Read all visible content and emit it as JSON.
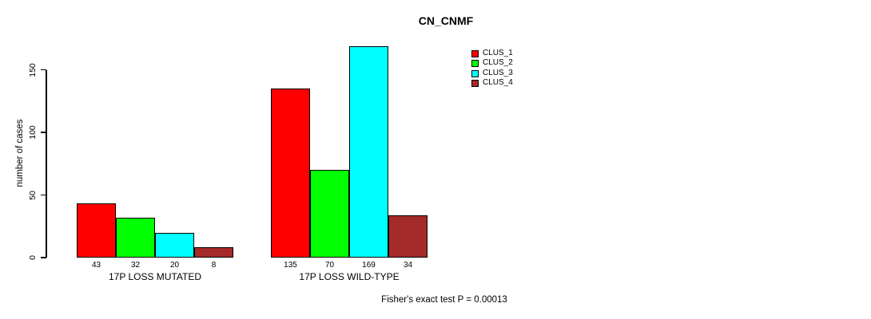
{
  "chart_data": {
    "type": "bar",
    "title": "CN_CNMF",
    "ylabel": "number of cases",
    "xlabel": "",
    "ylim": [
      0,
      169
    ],
    "yticks": [
      0,
      50,
      100,
      150
    ],
    "grid": false,
    "legend_position": "top-right",
    "categories": [
      "17P LOSS MUTATED",
      "17P LOSS WILD-TYPE"
    ],
    "series": [
      {
        "name": "CLUS_1",
        "color": "#ff0000",
        "values": [
          43,
          135
        ]
      },
      {
        "name": "CLUS_2",
        "color": "#00ff00",
        "values": [
          32,
          70
        ]
      },
      {
        "name": "CLUS_3",
        "color": "#00ffff",
        "values": [
          20,
          169
        ]
      },
      {
        "name": "CLUS_4",
        "color": "#a52a2a",
        "values": [
          8,
          34
        ]
      }
    ],
    "bar_value_labels": [
      [
        43,
        32,
        20,
        8
      ],
      [
        135,
        70,
        169,
        34
      ]
    ],
    "annotation": "Fisher's exact test P = 0.00013",
    "axis_color": "#000000",
    "bar_border_color": "#000000",
    "background_color": "#ffffff"
  }
}
